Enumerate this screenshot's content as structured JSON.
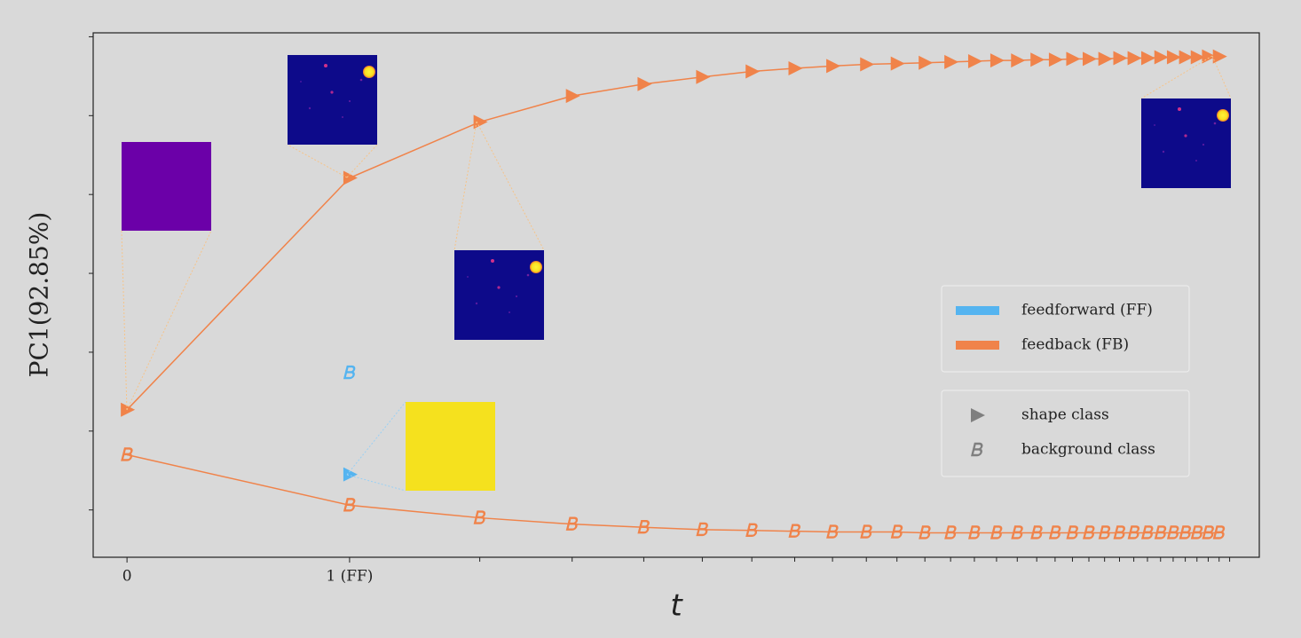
{
  "chart_data": {
    "type": "line",
    "xlabel": "t",
    "ylabel": "PC1(92.85%)",
    "xscale": "log1p",
    "xlim": [
      -0.1,
      33
    ],
    "ylim": [
      -0.6,
      6.05
    ],
    "xticks": [
      0,
      {
        "value": 1,
        "label": "1 (FF)"
      }
    ],
    "xminor_ticks": [
      2,
      3,
      4,
      5,
      6,
      7,
      8,
      9,
      10,
      11,
      12,
      13,
      14,
      15,
      16,
      17,
      18,
      19,
      20,
      21,
      22,
      23,
      24,
      25,
      26,
      27,
      28,
      29,
      30
    ],
    "yticks": [
      0,
      1,
      2,
      3,
      4,
      5,
      6
    ],
    "marker_classes": [
      "shape class",
      "background class"
    ],
    "series": [
      {
        "name": "feedforward (FF)",
        "color": "#55b4f0",
        "x": [
          1
        ],
        "shape": [
          0.45
        ],
        "background": [
          1.74
        ]
      },
      {
        "name": "feedback (FB)",
        "color": "#f0834a",
        "x": [
          0,
          1,
          2,
          3,
          4,
          5,
          6,
          7,
          8,
          9,
          10,
          11,
          12,
          13,
          14,
          15,
          16,
          17,
          18,
          19,
          20,
          21,
          22,
          23,
          24,
          25,
          26,
          27,
          28,
          29
        ],
        "shape": [
          1.27,
          4.21,
          4.92,
          5.25,
          5.4,
          5.49,
          5.56,
          5.6,
          5.63,
          5.65,
          5.66,
          5.67,
          5.68,
          5.69,
          5.7,
          5.7,
          5.71,
          5.71,
          5.72,
          5.72,
          5.72,
          5.73,
          5.73,
          5.73,
          5.74,
          5.74,
          5.74,
          5.74,
          5.75,
          5.75
        ],
        "background": [
          0.7,
          0.06,
          -0.1,
          -0.18,
          -0.22,
          -0.25,
          -0.26,
          -0.27,
          -0.28,
          -0.28,
          -0.28,
          -0.29,
          -0.29,
          -0.29,
          -0.29,
          -0.29,
          -0.29,
          -0.29,
          -0.29,
          -0.29,
          -0.29,
          -0.29,
          -0.29,
          -0.29,
          -0.29,
          -0.29,
          -0.29,
          -0.29,
          -0.29,
          -0.29
        ]
      }
    ]
  }
}
